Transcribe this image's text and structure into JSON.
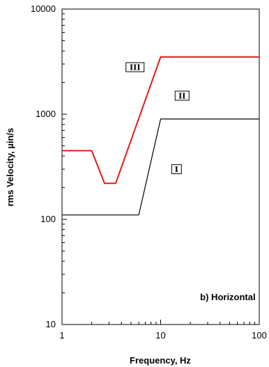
{
  "chart_data": {
    "type": "line",
    "xscale": "log",
    "yscale": "log",
    "xlim": [
      1,
      100
    ],
    "ylim": [
      10,
      10000
    ],
    "xlabel": "Frequency, Hz",
    "ylabel": "rms Velocity, µin/s",
    "x_tick_labels": [
      "1",
      "10",
      "100"
    ],
    "y_tick_labels": [
      "10",
      "100",
      "1000",
      "10000"
    ],
    "grid": false,
    "series": [
      {
        "color": "#e01b1b",
        "x": [
          1,
          2,
          2.7,
          3.5,
          10,
          100
        ],
        "y": [
          450,
          450,
          220,
          220,
          3500,
          3500
        ]
      },
      {
        "color": "#000000",
        "x": [
          1,
          6,
          10,
          100
        ],
        "y": [
          110,
          110,
          900,
          900
        ]
      }
    ],
    "annotations": [
      {
        "text": "b) Horizontal",
        "x": 48,
        "y": 17
      }
    ],
    "region_labels": [
      {
        "text": "III",
        "x": 5.5,
        "y": 2800
      },
      {
        "text": "II",
        "x": 16.5,
        "y": 1500
      },
      {
        "text": "I",
        "x": 14.5,
        "y": 300
      }
    ]
  }
}
